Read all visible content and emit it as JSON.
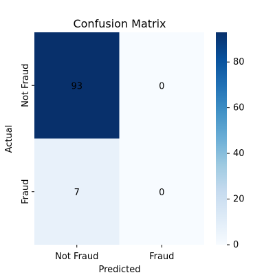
{
  "chart_data": {
    "type": "heatmap",
    "title": "Confusion Matrix",
    "xlabel": "Predicted",
    "ylabel": "Actual",
    "x_categories": [
      "Not Fraud",
      "Fraud"
    ],
    "y_categories": [
      "Not Fraud",
      "Fraud"
    ],
    "values": [
      [
        93,
        0
      ],
      [
        7,
        0
      ]
    ],
    "cell_labels": [
      [
        "93",
        "0"
      ],
      [
        "7",
        "0"
      ]
    ],
    "colormap": "Blues",
    "colorbar": {
      "range": [
        0,
        93
      ],
      "ticks": [
        0,
        20,
        40,
        60,
        80
      ],
      "tick_labels": [
        "0",
        "20",
        "40",
        "60",
        "80"
      ]
    },
    "colors": {
      "min": "#f7fbff",
      "low": "#e8f1fb",
      "max": "#08306b"
    }
  }
}
